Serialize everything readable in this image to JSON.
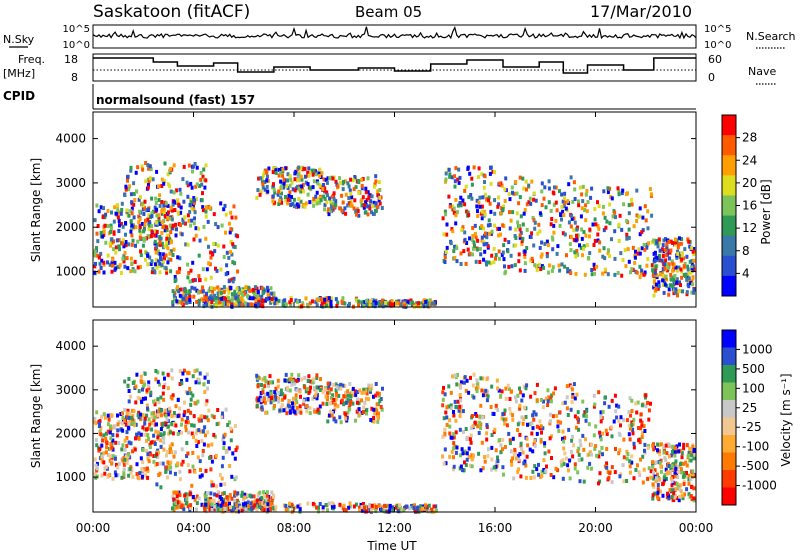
{
  "header": {
    "station": "Saskatoon (fitACF)",
    "beam": "Beam 05",
    "date": "17/Mar/2010"
  },
  "nsky_panel": {
    "left_label": "N.Sky",
    "right_label": "N.Search",
    "ticks": [
      "10^5",
      "10^0"
    ]
  },
  "freq_panel": {
    "left_label_1": "Freq.",
    "left_label_2": "[MHz]",
    "left_ticks": [
      "18",
      "8"
    ],
    "right_label": "Nave",
    "right_ticks": [
      "60",
      "0"
    ]
  },
  "cpid": {
    "label": "CPID",
    "value": "normalsound (fast) 157"
  },
  "chart_data": [
    {
      "type": "heatmap",
      "name": "power",
      "ylabel": "Slant Range [km]",
      "y_ticks": [
        "4000",
        "3000",
        "2000",
        "1000"
      ],
      "ylim": [
        200,
        4600
      ],
      "colorbar_label": "Power [dB]",
      "colorbar_ticks": [
        "28",
        "24",
        "20",
        "16",
        "12",
        "8",
        "4"
      ],
      "colorbar_colors": [
        "#0000ff",
        "#2a4fd0",
        "#3a78a8",
        "#2f9a55",
        "#7cc45a",
        "#dddd20",
        "#ff9e00",
        "#ff5a00",
        "#ff0000"
      ]
    },
    {
      "type": "heatmap",
      "name": "velocity",
      "ylabel": "Slant Range [km]",
      "y_ticks": [
        "4000",
        "3000",
        "2000",
        "1000"
      ],
      "ylim": [
        200,
        4600
      ],
      "colorbar_label": "Velocity [m s⁻¹]",
      "colorbar_ticks": [
        "1000",
        "500",
        "100",
        "25",
        "-25",
        "-100",
        "-500",
        "-1000"
      ],
      "colorbar_colors": [
        "#ff0000",
        "#ff3c00",
        "#ff7a00",
        "#ffaa33",
        "#f0c890",
        "#c8c8c8",
        "#7cc45a",
        "#2f9a55",
        "#2a4fd0",
        "#0000ff"
      ]
    }
  ],
  "x_axis": {
    "label": "Time UT",
    "ticks": [
      "00:00",
      "04:00",
      "08:00",
      "12:00",
      "16:00",
      "20:00",
      "00:00"
    ]
  }
}
